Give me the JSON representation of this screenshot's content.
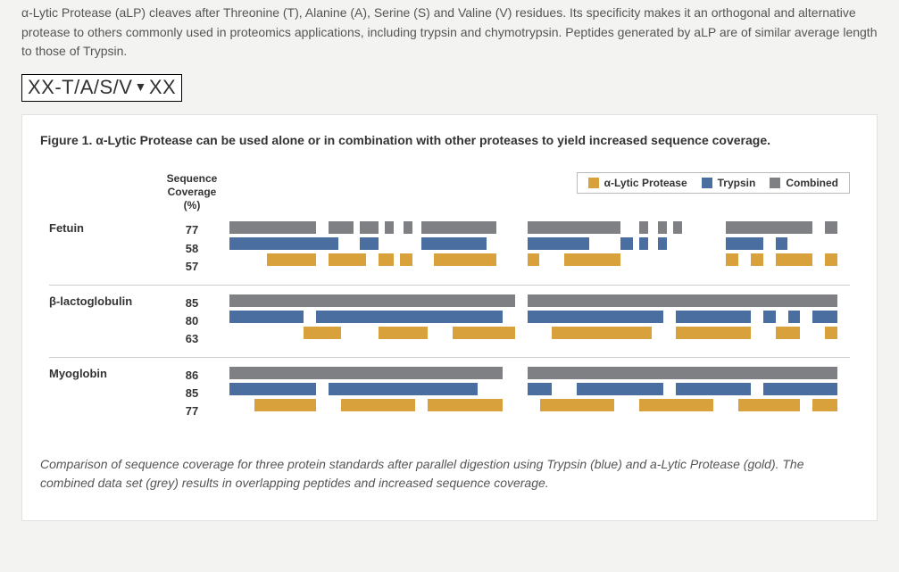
{
  "intro": "α-Lytic Protease (aLP) cleaves after Threonine (T), Alanine (A), Serine (S) and Valine (V) residues. Its specificity makes it an orthogonal and alternative protease to others commonly used in proteomics applications, including trypsin and chymotrypsin. Peptides generated by aLP are of similar average length to those of Trypsin.",
  "cleave_left": "XX-T/A/S/V",
  "cleave_right": "XX",
  "figure": {
    "title_lead": "Figure 1.",
    "title_rest": " α-Lytic Protease can be used alone or in combination with other proteases to yield increased sequence coverage.",
    "seq_cov_label_l1": "Sequence",
    "seq_cov_label_l2": "Coverage (%)",
    "legend": {
      "alp": {
        "label": "α-Lytic Protease",
        "color": "#d9a13b"
      },
      "trypsin": {
        "label": "Trypsin",
        "color": "#4a6ea0"
      },
      "combined": {
        "label": "Combined",
        "color": "#7f8084"
      }
    },
    "proteins": [
      {
        "name": "Fetuin",
        "rows": [
          {
            "cov": "77",
            "color": "#7f8084",
            "segments": [
              [
                0,
                14
              ],
              [
                16,
                20
              ],
              [
                21,
                24
              ],
              [
                25,
                26.5
              ],
              [
                28,
                29.5
              ],
              [
                31,
                43
              ],
              [
                48,
                63
              ],
              [
                66,
                67.5
              ],
              [
                69,
                70.5
              ],
              [
                71.5,
                73
              ],
              [
                80,
                94
              ],
              [
                96,
                98
              ]
            ]
          },
          {
            "cov": "58",
            "color": "#4a6ea0",
            "segments": [
              [
                0,
                17.5
              ],
              [
                21,
                24
              ],
              [
                31,
                41.5
              ],
              [
                48,
                58
              ],
              [
                63,
                65
              ],
              [
                66,
                67.5
              ],
              [
                69,
                70.5
              ],
              [
                80,
                86
              ],
              [
                88,
                90
              ]
            ]
          },
          {
            "cov": "57",
            "color": "#d9a13b",
            "segments": [
              [
                6,
                14
              ],
              [
                16,
                22
              ],
              [
                24,
                26.5
              ],
              [
                27.5,
                29.5
              ],
              [
                33,
                43
              ],
              [
                48,
                50
              ],
              [
                54,
                63
              ],
              [
                80,
                82
              ],
              [
                84,
                86
              ],
              [
                88,
                94
              ],
              [
                96,
                98
              ]
            ]
          }
        ]
      },
      {
        "name": "β-lactoglobulin",
        "rows": [
          {
            "cov": "85",
            "color": "#7f8084",
            "segments": [
              [
                0,
                46
              ],
              [
                48,
                98
              ]
            ]
          },
          {
            "cov": "80",
            "color": "#4a6ea0",
            "segments": [
              [
                0,
                12
              ],
              [
                14,
                44
              ],
              [
                48,
                70
              ],
              [
                72,
                84
              ],
              [
                86,
                88
              ],
              [
                90,
                92
              ],
              [
                94,
                98
              ]
            ]
          },
          {
            "cov": "63",
            "color": "#d9a13b",
            "segments": [
              [
                12,
                18
              ],
              [
                24,
                32
              ],
              [
                36,
                46
              ],
              [
                52,
                68
              ],
              [
                72,
                84
              ],
              [
                88,
                92
              ],
              [
                96,
                98
              ]
            ]
          }
        ]
      },
      {
        "name": "Myoglobin",
        "rows": [
          {
            "cov": "86",
            "color": "#7f8084",
            "segments": [
              [
                0,
                44
              ],
              [
                48,
                98
              ]
            ]
          },
          {
            "cov": "85",
            "color": "#4a6ea0",
            "segments": [
              [
                0,
                14
              ],
              [
                16,
                40
              ],
              [
                48,
                52
              ],
              [
                56,
                70
              ],
              [
                72,
                84
              ],
              [
                86,
                98
              ]
            ]
          },
          {
            "cov": "77",
            "color": "#d9a13b",
            "segments": [
              [
                4,
                14
              ],
              [
                18,
                30
              ],
              [
                32,
                44
              ],
              [
                50,
                62
              ],
              [
                66,
                78
              ],
              [
                82,
                92
              ],
              [
                94,
                98
              ]
            ]
          }
        ]
      }
    ],
    "caption": "Comparison of sequence coverage for three protein standards after parallel digestion using Trypsin (blue) and a-Lytic Protease (gold). The combined data set (grey) results in overlapping peptides and increased sequence coverage."
  }
}
